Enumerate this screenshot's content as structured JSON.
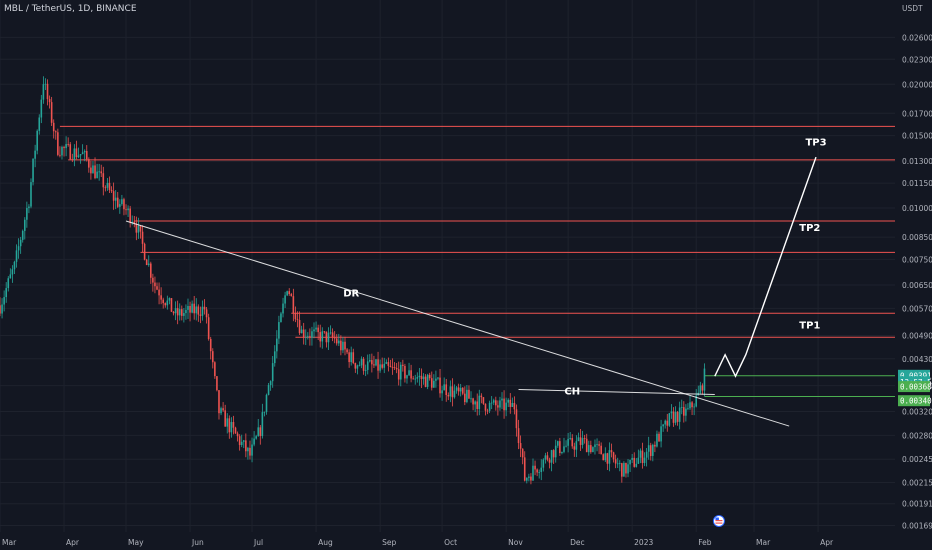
{
  "header": {
    "symbol_title": "MBL / TetherUS, 1D, BINANCE"
  },
  "chart_data": {
    "type": "candlestick",
    "title": "MBL / TetherUS, 1D, BINANCE",
    "currency_label": "USDT",
    "y_scale": "log",
    "ylim": [
      0.00163,
      0.031
    ],
    "y_ticks": [
      "0.026000",
      "0.023000",
      "0.020000",
      "0.017000",
      "0.015000",
      "0.013000",
      "0.011500",
      "0.010000",
      "0.008500",
      "0.007500",
      "0.006500",
      "0.005700",
      "0.004900",
      "0.004300",
      "0.003700",
      "0.003200",
      "0.002800",
      "0.002450",
      "0.002150",
      "0.001910",
      "0.001690"
    ],
    "x_ticks": [
      "Mar",
      "Apr",
      "May",
      "Jun",
      "Jul",
      "Aug",
      "Sep",
      "Oct",
      "Nov",
      "Dec",
      "2023",
      "Feb",
      "Mar",
      "Apr"
    ],
    "x_axis": {
      "start": "2022-03-01",
      "end": "2023-04-30"
    },
    "grid": true,
    "key_close_path": [
      [
        "2022-03-01",
        0.0058
      ],
      [
        "2022-03-08",
        0.0072
      ],
      [
        "2022-03-15",
        0.0105
      ],
      [
        "2022-03-22",
        0.0205
      ],
      [
        "2022-03-29",
        0.014
      ],
      [
        "2022-04-10",
        0.0135
      ],
      [
        "2022-04-25",
        0.0106
      ],
      [
        "2022-05-05",
        0.0094
      ],
      [
        "2022-05-15",
        0.0065
      ],
      [
        "2022-05-25",
        0.0055
      ],
      [
        "2022-06-08",
        0.0057
      ],
      [
        "2022-06-15",
        0.0032
      ],
      [
        "2022-06-30",
        0.0025
      ],
      [
        "2022-07-05",
        0.0029
      ],
      [
        "2022-07-18",
        0.0065
      ],
      [
        "2022-07-25",
        0.005
      ],
      [
        "2022-08-10",
        0.0048
      ],
      [
        "2022-08-20",
        0.0042
      ],
      [
        "2022-09-10",
        0.004
      ],
      [
        "2022-09-25",
        0.0038
      ],
      [
        "2022-10-10",
        0.0035
      ],
      [
        "2022-10-25",
        0.0033
      ],
      [
        "2022-11-05",
        0.0033
      ],
      [
        "2022-11-10",
        0.0022
      ],
      [
        "2022-11-25",
        0.0026
      ],
      [
        "2022-12-08",
        0.0027
      ],
      [
        "2022-12-20",
        0.0025
      ],
      [
        "2022-12-28",
        0.0023
      ],
      [
        "2023-01-10",
        0.0026
      ],
      [
        "2023-01-20",
        0.0031
      ],
      [
        "2023-01-28",
        0.0032
      ],
      [
        "2023-02-02",
        0.0035
      ],
      [
        "2023-02-05",
        0.0039
      ]
    ],
    "annotations": {
      "texts": [
        {
          "label": "DR",
          "date": "2022-08-18",
          "price": 0.0061
        },
        {
          "label": "CH",
          "date": "2022-12-03",
          "price": 0.00352
        },
        {
          "label": "TP1",
          "date": "2023-03-28",
          "price": 0.0051
        },
        {
          "label": "TP2",
          "date": "2023-03-28",
          "price": 0.0088
        },
        {
          "label": "TP3",
          "date": "2023-03-31",
          "price": 0.0142
        }
      ],
      "resistance_levels": [
        {
          "from": "2022-03-30",
          "price": 0.0158
        },
        {
          "from": "2022-04-03",
          "price": 0.0131
        },
        {
          "from": "2022-05-05",
          "price": 0.0093
        },
        {
          "from": "2022-05-08",
          "price": 0.0078
        },
        {
          "from": "2022-07-20",
          "price": 0.00555
        },
        {
          "from": "2022-07-22",
          "price": 0.00485
        }
      ],
      "support_levels": [
        {
          "from": "2023-02-05",
          "price": 0.00391,
          "color": "#4caf50"
        },
        {
          "from": "2023-02-05",
          "price": 0.00348,
          "color": "#4caf50"
        }
      ],
      "trendlines": [
        {
          "name": "descending-resistance",
          "points": [
            [
              "2022-05-01",
              0.0093
            ],
            [
              "2023-03-18",
              0.00295
            ]
          ]
        },
        {
          "name": "change-of-character-line",
          "points": [
            [
              "2022-11-07",
              0.00362
            ],
            [
              "2023-02-10",
              0.00352
            ]
          ]
        }
      ],
      "projection_path": [
        [
          "2023-02-10",
          0.0039
        ],
        [
          "2023-02-15",
          0.0044
        ],
        [
          "2023-02-20",
          0.0039
        ],
        [
          "2023-02-25",
          0.0044
        ],
        [
          "2023-03-31",
          0.0133
        ]
      ]
    },
    "price_badges": [
      {
        "label": "0.003916",
        "price": 0.00392,
        "color": "#26a69a"
      },
      {
        "label": "13:57:52",
        "price": 0.00378,
        "color": "#26a69a"
      },
      {
        "label": "0.003681",
        "price": 0.00368,
        "color": "#4caf50"
      },
      {
        "label": "0.003401",
        "price": 0.0034,
        "color": "#4caf50"
      }
    ],
    "colors": {
      "background": "#131722",
      "grid": "#1e222d",
      "up_candle": "#26a69a",
      "down_candle": "#ef5350",
      "resistance": "#ef5350",
      "trendline": "#ffffff"
    },
    "event_marker_date": "2023-02-12",
    "event_marker_icon": "us-flag-icon"
  }
}
